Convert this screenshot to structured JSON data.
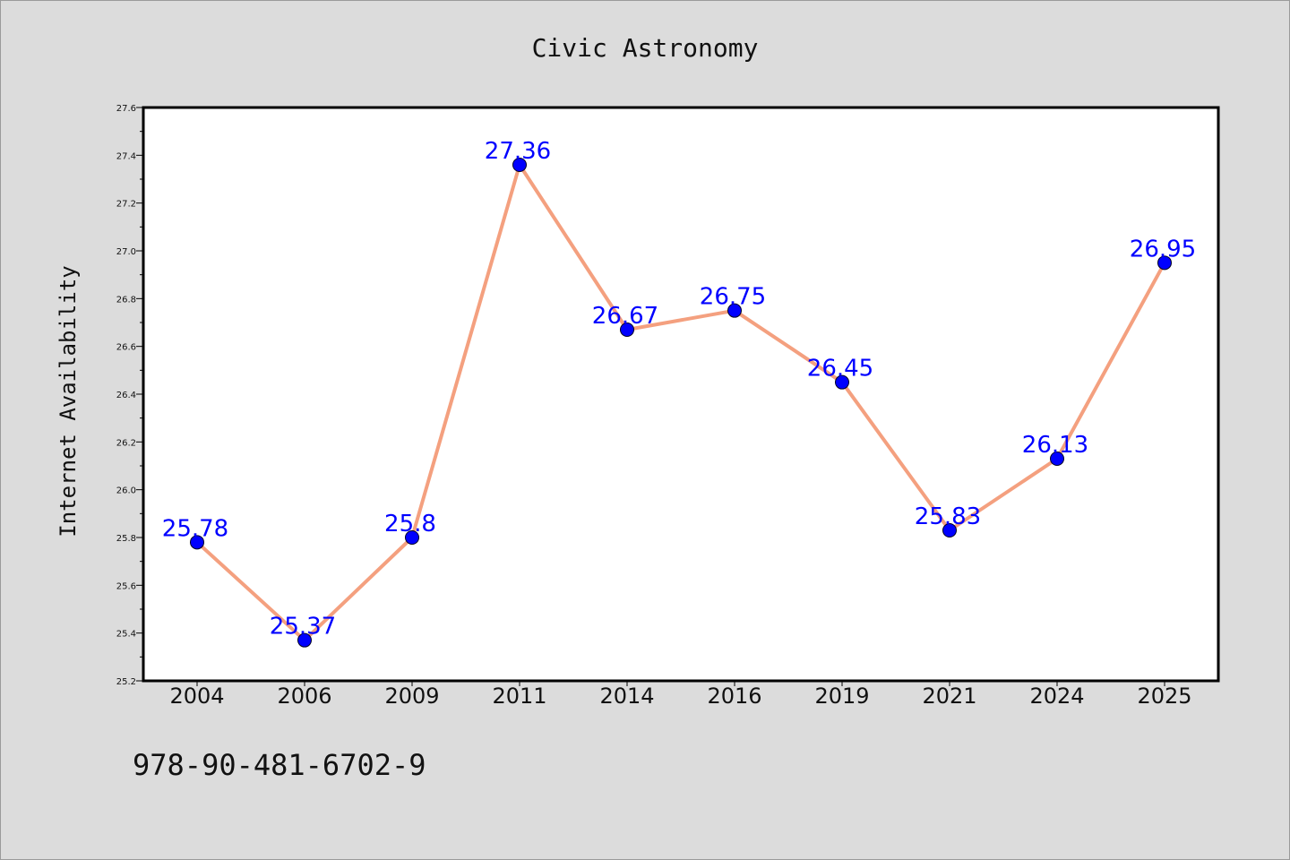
{
  "chart_data": {
    "type": "line",
    "title": "Civic Astronomy",
    "xlabel": "",
    "ylabel": "Internet Availability",
    "categories": [
      "2004",
      "2006",
      "2009",
      "2011",
      "2014",
      "2016",
      "2019",
      "2021",
      "2024",
      "2025"
    ],
    "values": [
      25.78,
      25.37,
      25.8,
      27.36,
      26.67,
      26.75,
      26.45,
      25.83,
      26.13,
      26.95
    ],
    "data_labels": [
      "25.78",
      "25.37",
      "25.8",
      "27.36",
      "26.67",
      "26.75",
      "26.45",
      "25.83",
      "26.13",
      "26.95"
    ],
    "ylim": [
      25.2,
      27.6
    ],
    "yticks": [
      "25.2",
      "25.4",
      "25.6",
      "25.8",
      "26.0",
      "26.2",
      "26.4",
      "26.6",
      "26.8",
      "27.0",
      "27.2",
      "27.4",
      "27.6"
    ],
    "grid": false,
    "legend": "none",
    "colors": {
      "line": "#f4a07f",
      "marker": "#0000ff",
      "data_label": "#0000ff",
      "plot_background": "#ffffff",
      "page_background": "#dcdcdc"
    }
  },
  "footer": {
    "code": "978-90-481-6702-9"
  }
}
